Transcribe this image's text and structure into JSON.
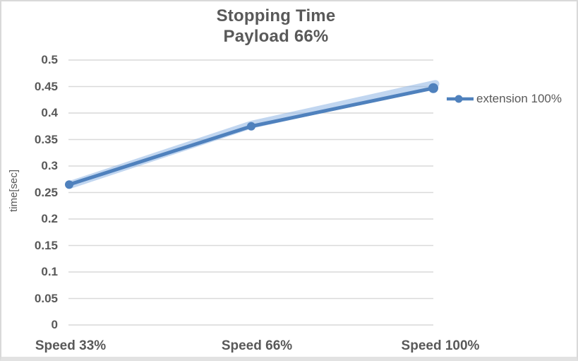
{
  "chart": {
    "title_line1": "Stopping Time",
    "title_line2": "Payload 66%",
    "y_axis_title": "time[sec]",
    "legend_label": "extension 100%"
  },
  "chart_data": {
    "type": "line",
    "title": "Stopping Time",
    "subtitle": "Payload 66%",
    "categories": [
      "Speed 33%",
      "Speed 66%",
      "Speed 100%"
    ],
    "series": [
      {
        "name": "extension 100%",
        "values": [
          0.265,
          0.375,
          0.447
        ],
        "color": "#4F81BD",
        "marker": "circle"
      }
    ],
    "glow_overlay": {
      "values": [
        0.264,
        0.378,
        0.455
      ],
      "color": "#8EB4E3",
      "opacity": 0.55
    },
    "xlabel": "",
    "ylabel": "time[sec]",
    "ylim": [
      0,
      0.5
    ],
    "ytick_step": 0.05,
    "grid": "horizontal-only",
    "gridline_color": "#D9D9D9",
    "text_color": "#595959",
    "legend_position": "right"
  }
}
